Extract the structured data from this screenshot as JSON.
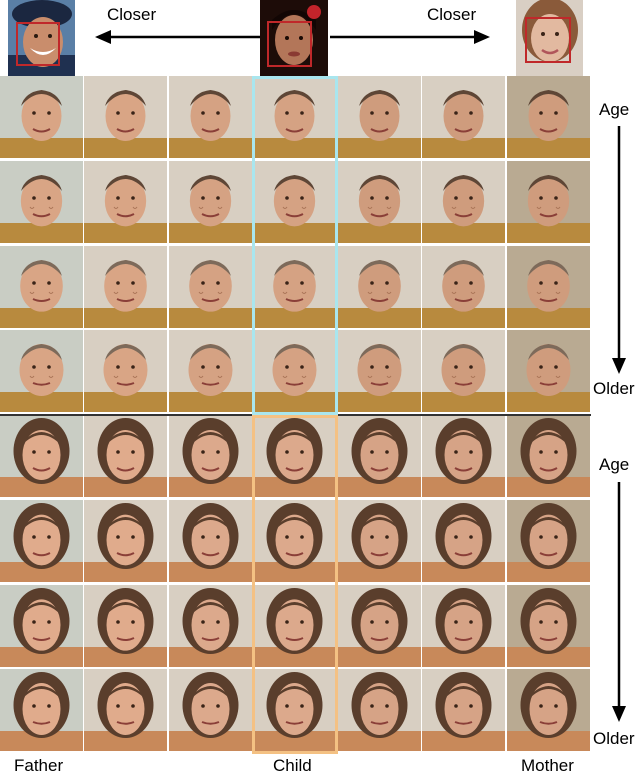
{
  "header": {
    "closer_left": "Closer",
    "closer_right": "Closer"
  },
  "right_axis": {
    "top": {
      "age": "Age",
      "older": "Older"
    },
    "bottom": {
      "age": "Age",
      "older": "Older"
    }
  },
  "bottom_labels": {
    "father": "Father",
    "child": "Child",
    "mother": "Mother"
  },
  "colors": {
    "boy_frame": "#a9e6ee",
    "girl_frame": "#f4c183",
    "face_box": "#c0282a"
  },
  "grid": {
    "columns": 7,
    "rows_per_block": 4,
    "blocks": [
      "boy",
      "girl"
    ],
    "child_column": 4
  }
}
